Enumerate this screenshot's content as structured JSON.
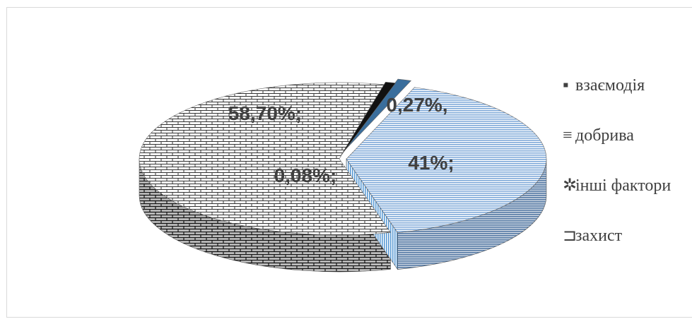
{
  "chart_data": {
    "type": "pie",
    "style": "3d-exploded",
    "slices": [
      {
        "name": "взаємодія",
        "value": 0.27,
        "label": "0,27%,",
        "color": "#5b9bd5"
      },
      {
        "name": "добрива",
        "value": 41,
        "label": "41%;",
        "color": "#8fb6e0"
      },
      {
        "name": "інші фактори",
        "value": 58.7,
        "label": "58,70%;",
        "color": "#ffffff"
      },
      {
        "name": "захист",
        "value": 0.08,
        "label": "0,08%;",
        "color": "#000000"
      }
    ],
    "legend": {
      "placement": "right",
      "items": [
        {
          "label": "взаємодія",
          "marker": "▪",
          "color": "#5b9bd5"
        },
        {
          "label": "добрива",
          "marker": "≡",
          "color": "#8fb6e0"
        },
        {
          "label": "інші фактори",
          "marker": "✲",
          "color": "#5b9bd5"
        },
        {
          "label": "захист",
          "marker": "⊐",
          "color": "#000000"
        }
      ]
    }
  }
}
